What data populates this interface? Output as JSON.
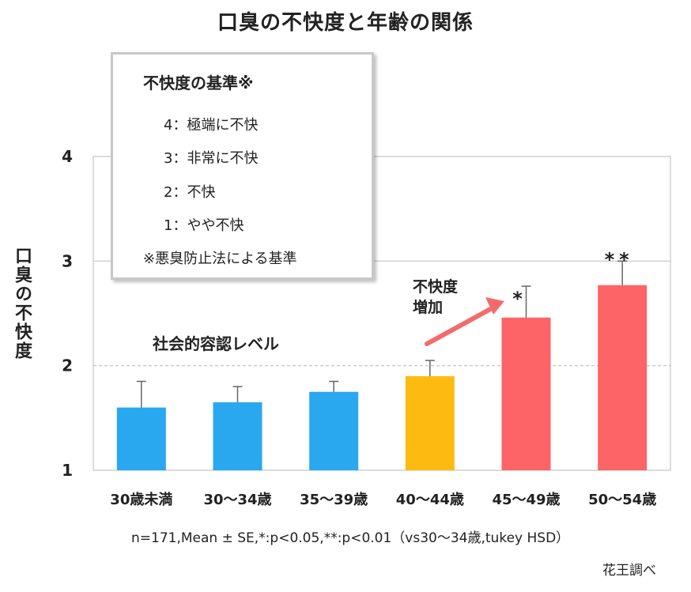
{
  "title": "口臭の不快度と年齢の関係",
  "y_axis_label": "口臭の不快度",
  "legend_box": {
    "title": "不快度の基準※",
    "items": [
      "4：極端に不快",
      "3：非常に不快",
      "2：不快",
      "1：やや不快"
    ],
    "footnote": "※悪臭防止法による基準"
  },
  "annotations": {
    "social_level": "社会的容認レベル",
    "increase": [
      "不快度",
      "増加"
    ]
  },
  "note": "n=171,Mean ± SE,*:p<0.05,**:p<0.01（vs30〜34歳,tukey HSD）",
  "source": "花王調べ",
  "colors": {
    "blue": "#29a8f0",
    "yellow": "#fdbb12",
    "red": "#fd6467",
    "arrow": "#f36b6b",
    "grid": "#d0d0d0",
    "dashed": "#cccccc"
  },
  "chart_data": {
    "type": "bar",
    "title": "口臭の不快度と年齢の関係",
    "xlabel": "",
    "ylabel": "口臭の不快度",
    "categories": [
      "30歳未満",
      "30〜34歳",
      "35〜39歳",
      "40〜44歳",
      "45〜49歳",
      "50〜54歳"
    ],
    "values": [
      1.6,
      1.65,
      1.75,
      1.9,
      2.46,
      2.77
    ],
    "errors": [
      0.25,
      0.15,
      0.1,
      0.15,
      0.3,
      0.23
    ],
    "significance": [
      "",
      "",
      "",
      "",
      "*",
      "**"
    ],
    "bar_colors": [
      "blue",
      "blue",
      "blue",
      "yellow",
      "red",
      "red"
    ],
    "ylim": [
      1,
      4
    ],
    "yticks": [
      1,
      2,
      3,
      4
    ],
    "reference_line": 2,
    "grid": true
  }
}
